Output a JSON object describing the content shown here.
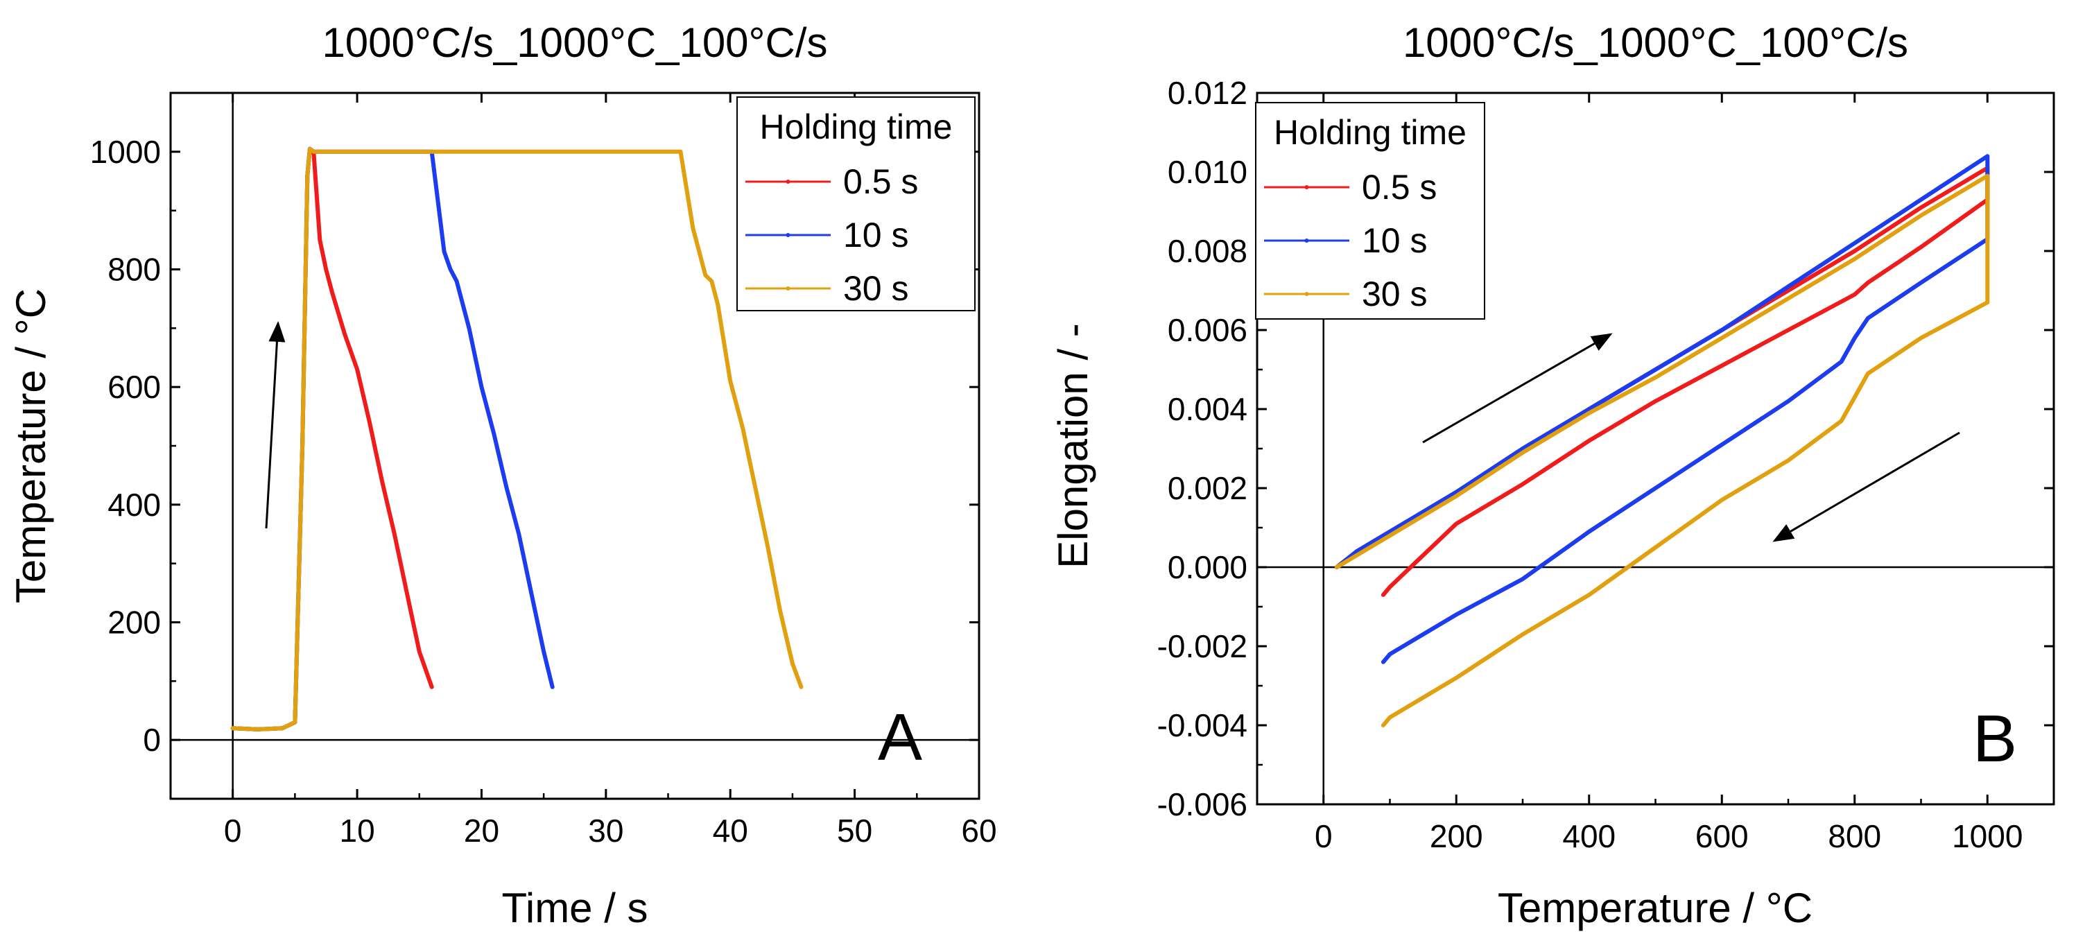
{
  "chart_data": [
    {
      "type": "line",
      "panel_label": "A",
      "title": "1000°C/s_1000°C_100°C/s",
      "xlabel": "Time / s",
      "ylabel": "Temperature / °C",
      "xlim": [
        -5,
        60
      ],
      "ylim": [
        -100,
        1100
      ],
      "xticks": [
        0,
        10,
        20,
        30,
        40,
        50,
        60
      ],
      "yticks": [
        0,
        200,
        400,
        600,
        800,
        1000
      ],
      "xtick_labels": [
        "0",
        "10",
        "20",
        "30",
        "40",
        "50",
        "60"
      ],
      "ytick_labels": [
        "0",
        "200",
        "400",
        "600",
        "800",
        "1000"
      ],
      "legend_title": "Holding time",
      "legend_position": "top-right",
      "annotation": "heating arrow (up)",
      "series": [
        {
          "name": "0.5 s",
          "color": "#f01c1c",
          "x": [
            0,
            2,
            4,
            5,
            5.6,
            6,
            6.2,
            6.5,
            7,
            7.5,
            8,
            9,
            10,
            11,
            12,
            13,
            14,
            15,
            16
          ],
          "y": [
            20,
            18,
            20,
            30,
            500,
            960,
            1005,
            1000,
            850,
            800,
            760,
            690,
            630,
            540,
            440,
            350,
            250,
            150,
            90
          ]
        },
        {
          "name": "10 s",
          "color": "#1c3cf0",
          "x": [
            0,
            2,
            4,
            5,
            5.6,
            6,
            6.2,
            6.5,
            9,
            12,
            15,
            16,
            17,
            17.5,
            18,
            19,
            20,
            21,
            22,
            23,
            24,
            25,
            25.7
          ],
          "y": [
            20,
            18,
            20,
            30,
            500,
            960,
            1005,
            1000,
            1000,
            1000,
            1000,
            1000,
            830,
            800,
            780,
            700,
            600,
            520,
            430,
            350,
            250,
            150,
            90
          ]
        },
        {
          "name": "30 s",
          "color": "#e0a010",
          "x": [
            0,
            2,
            4,
            5,
            5.6,
            6,
            6.2,
            6.5,
            10,
            20,
            30,
            36,
            37,
            38,
            38.5,
            39,
            40,
            41,
            42,
            43,
            44,
            45,
            45.7
          ],
          "y": [
            20,
            18,
            20,
            30,
            500,
            960,
            1005,
            1000,
            1000,
            1000,
            1000,
            1000,
            870,
            790,
            780,
            740,
            610,
            530,
            430,
            330,
            220,
            130,
            90
          ]
        }
      ]
    },
    {
      "type": "line",
      "panel_label": "B",
      "title": "1000°C/s_1000°C_100°C/s",
      "xlabel": "Temperature / °C",
      "ylabel": "Elongation / -",
      "xlim": [
        -100,
        1100
      ],
      "ylim": [
        -0.006,
        0.012
      ],
      "xticks": [
        0,
        200,
        400,
        600,
        800,
        1000
      ],
      "yticks": [
        -0.006,
        -0.004,
        -0.002,
        0.0,
        0.002,
        0.004,
        0.006,
        0.008,
        0.01,
        0.012
      ],
      "xtick_labels": [
        "0",
        "200",
        "400",
        "600",
        "800",
        "1000"
      ],
      "ytick_labels": [
        "-0.006",
        "-0.004",
        "-0.002",
        "0.000",
        "0.002",
        "0.004",
        "0.006",
        "0.008",
        "0.010",
        "0.012"
      ],
      "legend_title": "Holding time",
      "legend_position": "top-left",
      "annotation": "heating arrow (up-right), cooling arrow (down-left)",
      "series": [
        {
          "name": "0.5 s",
          "color": "#f01c1c",
          "x": [
            20,
            50,
            100,
            200,
            300,
            400,
            500,
            600,
            700,
            800,
            900,
            1000,
            1000,
            900,
            820,
            800,
            700,
            600,
            500,
            400,
            300,
            200,
            100,
            90
          ],
          "y": [
            0.0,
            0.0004,
            0.0009,
            0.0019,
            0.003,
            0.004,
            0.005,
            0.006,
            0.007,
            0.008,
            0.0091,
            0.0101,
            0.0093,
            0.0081,
            0.0072,
            0.0069,
            0.006,
            0.0051,
            0.0042,
            0.0032,
            0.0021,
            0.0011,
            -0.0005,
            -0.0007
          ]
        },
        {
          "name": "10 s",
          "color": "#1c3cf0",
          "x": [
            20,
            50,
            100,
            200,
            300,
            400,
            500,
            600,
            700,
            800,
            900,
            1000,
            1000,
            900,
            820,
            800,
            780,
            700,
            600,
            500,
            400,
            300,
            200,
            100,
            90
          ],
          "y": [
            0.0,
            0.0004,
            0.0009,
            0.0019,
            0.003,
            0.004,
            0.005,
            0.006,
            0.0071,
            0.0082,
            0.0093,
            0.0104,
            0.0083,
            0.0072,
            0.0063,
            0.0058,
            0.0052,
            0.0042,
            0.0031,
            0.002,
            0.0009,
            -0.0003,
            -0.0012,
            -0.0022,
            -0.0024
          ]
        },
        {
          "name": "30 s",
          "color": "#e0a010",
          "x": [
            20,
            50,
            100,
            200,
            300,
            400,
            500,
            600,
            700,
            800,
            900,
            1000,
            1000,
            1000,
            900,
            820,
            800,
            780,
            700,
            600,
            500,
            400,
            300,
            200,
            100,
            90
          ],
          "y": [
            0.0,
            0.0003,
            0.0008,
            0.0018,
            0.0029,
            0.0039,
            0.0048,
            0.0058,
            0.0068,
            0.0078,
            0.0089,
            0.0099,
            0.008,
            0.0067,
            0.0058,
            0.0049,
            0.0043,
            0.0037,
            0.0027,
            0.0017,
            0.0005,
            -0.0007,
            -0.0017,
            -0.0028,
            -0.0038,
            -0.004
          ]
        }
      ]
    }
  ]
}
